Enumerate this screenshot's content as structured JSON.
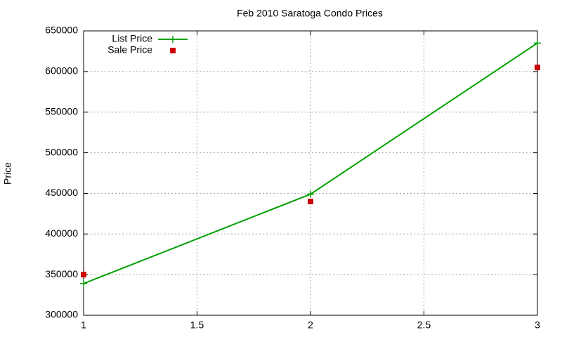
{
  "chart_data": {
    "type": "line",
    "title": "Feb 2010 Saratoga Condo Prices",
    "y_label": "Price",
    "x": [
      1,
      2,
      3
    ],
    "series": [
      {
        "name": "List Price",
        "color": "#00a000",
        "style": "linespoints",
        "values": [
          339000,
          449000,
          635000
        ]
      },
      {
        "name": "Sale Price",
        "color": "#cc0000",
        "style": "points",
        "values": [
          350000,
          440000,
          605000
        ]
      }
    ],
    "xlim": [
      1,
      3
    ],
    "xticks": [
      1,
      1.5,
      2,
      2.5,
      3
    ],
    "ylim": [
      300000,
      650000
    ],
    "yticks": [
      300000,
      350000,
      400000,
      450000,
      500000,
      550000,
      600000,
      650000
    ],
    "grid": true,
    "legend": "top-left"
  }
}
